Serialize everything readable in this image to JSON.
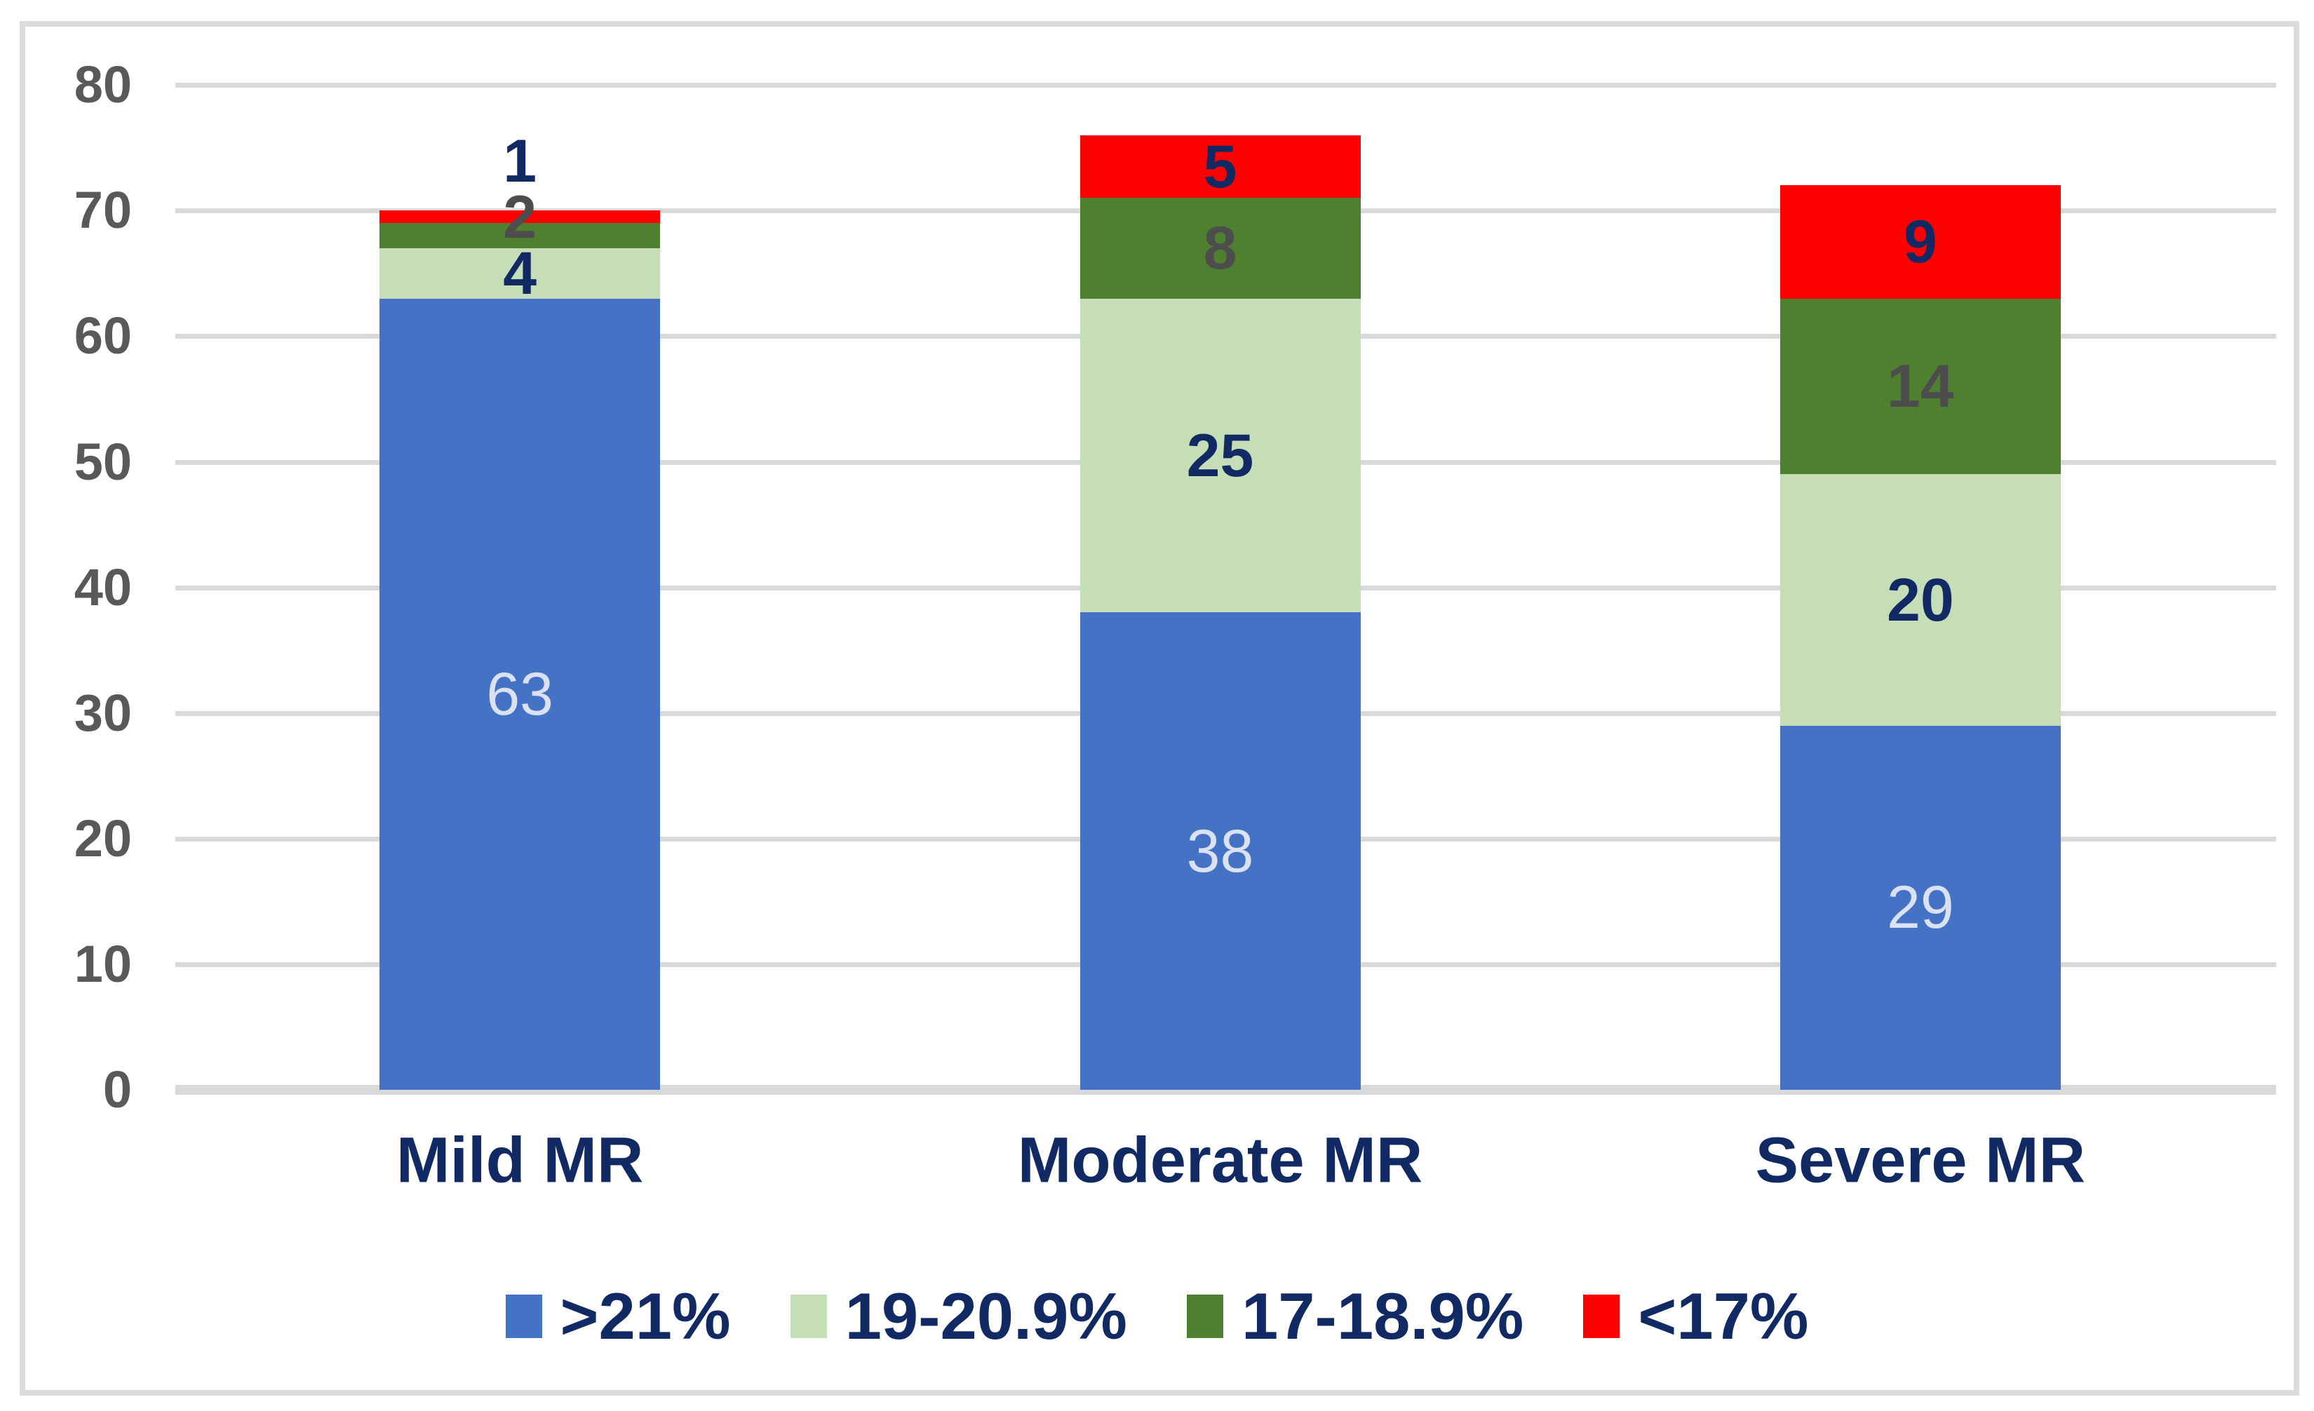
{
  "chart_data": {
    "type": "bar",
    "stacked": true,
    "title": "",
    "xlabel": "",
    "ylabel": "",
    "categories": [
      "Mild MR",
      "Moderate MR",
      "Severe MR"
    ],
    "series": [
      {
        "name": ">21%",
        "color": "#4472C4",
        "label_color": "#D9E1F2",
        "label_bold": false,
        "values": [
          63,
          38,
          29
        ]
      },
      {
        "name": "19-20.9%",
        "color": "#C6DEB8",
        "label_color": "#112A63",
        "label_bold": true,
        "values": [
          4,
          25,
          20
        ]
      },
      {
        "name": "17-18.9%",
        "color": "#4F8030",
        "label_color": "#4D4D4D",
        "label_bold": true,
        "values": [
          2,
          8,
          14
        ]
      },
      {
        "name": "<17%",
        "color": "#FF0000",
        "label_color": "#112A63",
        "label_bold": true,
        "values": [
          1,
          5,
          9
        ]
      }
    ],
    "ylim": [
      0,
      80
    ],
    "yticks": [
      0,
      10,
      20,
      30,
      40,
      50,
      60,
      70,
      80
    ],
    "grid": true,
    "legend_position": "bottom",
    "value_labels_shown": true,
    "colors": {
      "tick_text": "#595959",
      "category_text": "#112A63",
      "legend_text": "#112A63",
      "gridline": "#D9D9D9",
      "frame_border": "#DCDCDC",
      "background": "#FFFFFF"
    }
  }
}
